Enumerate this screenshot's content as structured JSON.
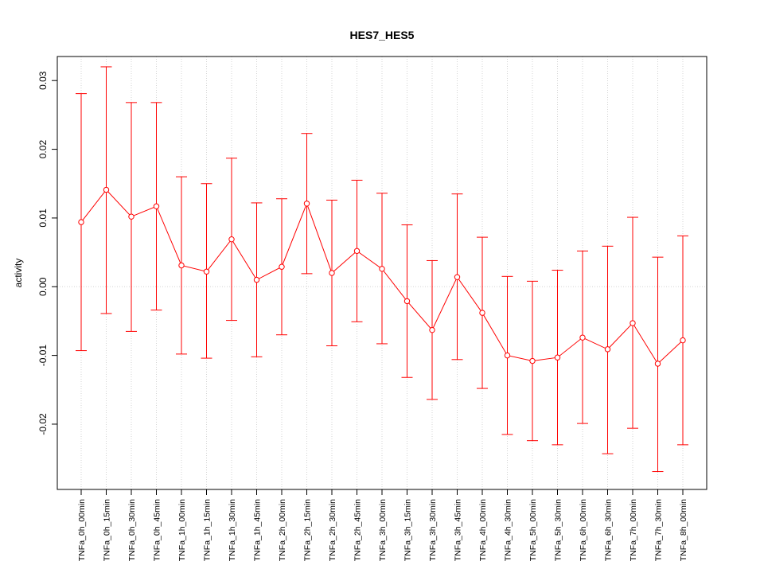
{
  "chart_data": {
    "type": "line",
    "title": "HES7_HES5",
    "xlabel": "",
    "ylabel": "activity",
    "ylim": [
      -0.0295,
      0.0335
    ],
    "grid": true,
    "yticks": [
      -0.02,
      -0.01,
      0.0,
      0.01,
      0.02,
      0.03
    ],
    "ytick_labels": [
      "-0.02",
      "-0.01",
      "0.00",
      "0.01",
      "0.02",
      "0.03"
    ],
    "categories": [
      "TNFa_0h_00min",
      "TNFa_0h_15min",
      "TNFa_0h_30min",
      "TNFa_0h_45min",
      "TNFa_1h_00min",
      "TNFa_1h_15min",
      "TNFa_1h_30min",
      "TNFa_1h_45min",
      "TNFa_2h_00min",
      "TNFa_2h_15min",
      "TNFa_2h_30min",
      "TNFa_2h_45min",
      "TNFa_3h_00min",
      "TNFa_3h_15min",
      "TNFa_3h_30min",
      "TNFa_3h_45min",
      "TNFa_4h_00min",
      "TNFa_4h_30min",
      "TNFa_5h_00min",
      "TNFa_5h_30min",
      "TNFa_6h_00min",
      "TNFa_6h_30min",
      "TNFa_7h_00min",
      "TNFa_7h_30min",
      "TNFa_8h_00min"
    ],
    "series": [
      {
        "color": "#ff0000",
        "values": [
          0.0094,
          0.0141,
          0.0102,
          0.0117,
          0.0031,
          0.0022,
          0.0069,
          0.001,
          0.0029,
          0.0121,
          0.002,
          0.0052,
          0.0026,
          -0.0021,
          -0.0063,
          0.0014,
          -0.0038,
          -0.01,
          -0.0108,
          -0.0103,
          -0.0074,
          -0.0091,
          -0.0053,
          -0.0112,
          -0.0078
        ],
        "upper": [
          0.0281,
          0.032,
          0.0268,
          0.0268,
          0.016,
          0.015,
          0.0187,
          0.0122,
          0.0128,
          0.0223,
          0.0126,
          0.0155,
          0.0136,
          0.009,
          0.0038,
          0.0135,
          0.0072,
          0.0015,
          0.0008,
          0.0024,
          0.0052,
          0.0059,
          0.0101,
          0.0043,
          0.0074
        ],
        "lower": [
          -0.0093,
          -0.0039,
          -0.0065,
          -0.0034,
          -0.0098,
          -0.0104,
          -0.0049,
          -0.0102,
          -0.007,
          0.0019,
          -0.0086,
          -0.0051,
          -0.0083,
          -0.0132,
          -0.0164,
          -0.0106,
          -0.0148,
          -0.0215,
          -0.0224,
          -0.023,
          -0.0199,
          -0.0243,
          -0.0206,
          -0.0269,
          -0.023
        ]
      }
    ]
  }
}
